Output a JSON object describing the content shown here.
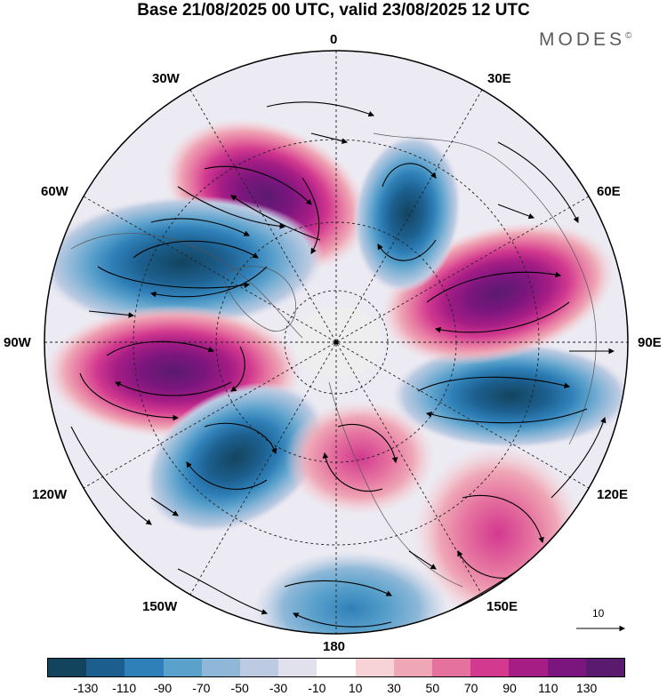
{
  "title": "Base 21/08/2025 00 UTC, valid 23/08/2025 12 UTC",
  "logo": "MODES",
  "logo_mark": "©",
  "longitudes": {
    "lon_0": "0",
    "lon_30e": "30E",
    "lon_60e": "60E",
    "lon_90e": "90E",
    "lon_120e": "120E",
    "lon_150e": "150E",
    "lon_180": "180",
    "lon_150w": "150W",
    "lon_120w": "120W",
    "lon_90w": "90W",
    "lon_60w": "60W",
    "lon_30w": "30W"
  },
  "vector_reference": "10",
  "colorbar": {
    "colors": [
      "#13445e",
      "#1c5f8f",
      "#2f80b8",
      "#5aa1cc",
      "#8fb8d8",
      "#bccbe2",
      "#e1e1ee",
      "#ffffff",
      "#f7d3d7",
      "#efa7b6",
      "#e5719f",
      "#d2398f",
      "#a61d85",
      "#7b167e",
      "#5a1a6e"
    ],
    "tick_labels": [
      "-130",
      "-110",
      "-90",
      "-70",
      "-50",
      "-30",
      "-10",
      "10",
      "30",
      "50",
      "70",
      "90",
      "110",
      "130"
    ]
  },
  "anomaly_centers": [
    {
      "name": "greenland-north-atlantic-high",
      "value": 130
    },
    {
      "name": "north-america-low",
      "value": -130
    },
    {
      "name": "alaska-gulf-high",
      "value": 130
    },
    {
      "name": "north-pacific-low",
      "value": -90
    },
    {
      "name": "bering-sea-high",
      "value": 70
    },
    {
      "name": "north-pacific-west-low",
      "value": -50
    },
    {
      "name": "japan-high",
      "value": 70
    },
    {
      "name": "east-siberia-low",
      "value": -110
    },
    {
      "name": "west-siberia-high",
      "value": 130
    },
    {
      "name": "scandinavia-low",
      "value": -110
    }
  ]
}
